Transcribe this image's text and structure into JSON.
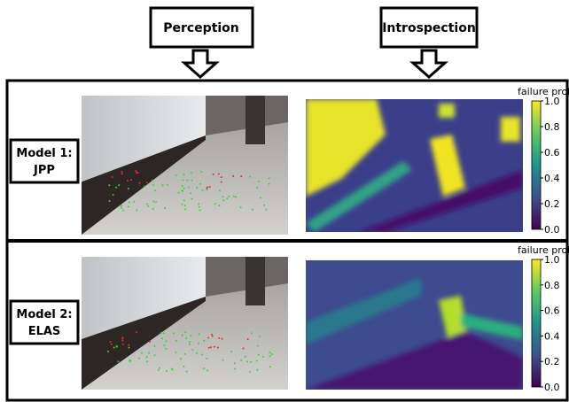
{
  "header": {
    "perception": "Perception",
    "introspection": "Introspection"
  },
  "rows": [
    {
      "label": [
        "Model 1:",
        "JPP"
      ],
      "colorbar_title": "failure prob.",
      "colorbar_ticks": [
        "1.0",
        "0.8",
        "0.6",
        "0.4",
        "0.2",
        "0.0"
      ]
    },
    {
      "label": [
        "Model 2:",
        "ELAS"
      ],
      "colorbar_title": "failure prob.",
      "colorbar_ticks": [
        "1.0",
        "0.8",
        "0.6",
        "0.4",
        "0.2",
        "0.0"
      ]
    }
  ]
}
